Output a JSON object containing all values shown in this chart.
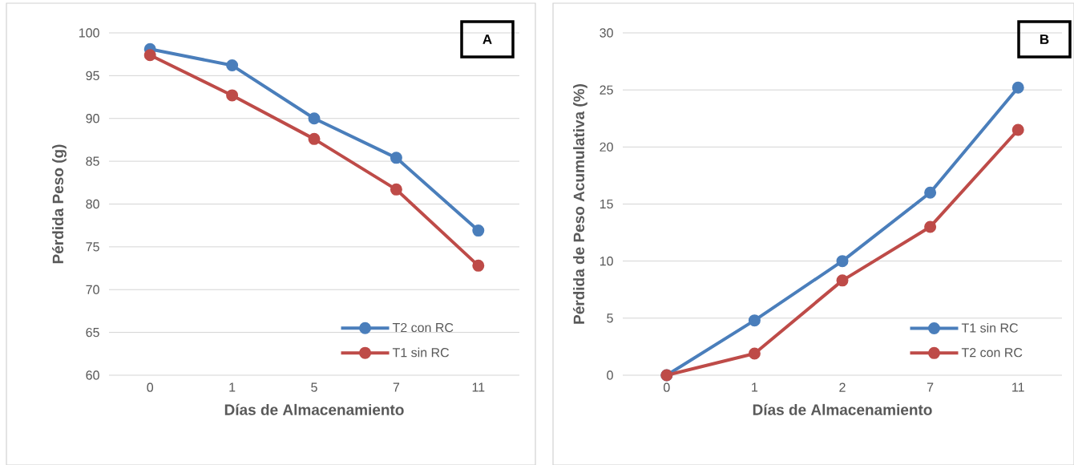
{
  "chart_data": [
    {
      "type": "line",
      "title": "A",
      "xlabel": "Días de Almacenamiento",
      "ylabel": "Pérdida Peso (g)",
      "categories": [
        "0",
        "1",
        "5",
        "7",
        "11"
      ],
      "series": [
        {
          "name": "T2 con RC",
          "color": "#4a7ebb",
          "values": [
            98.1,
            96.2,
            90.0,
            85.4,
            76.9
          ]
        },
        {
          "name": "T1 sin RC",
          "color": "#be4b48",
          "values": [
            97.4,
            92.7,
            87.6,
            81.7,
            72.8
          ]
        }
      ],
      "ylim": [
        60,
        100
      ],
      "yticks": [
        60,
        65,
        70,
        75,
        80,
        85,
        90,
        95,
        100
      ],
      "grid": "y",
      "legend": "bottom right",
      "marker": "circle",
      "line_style": "solid"
    },
    {
      "type": "line",
      "title": "B",
      "xlabel": "Días de Almacenamiento",
      "ylabel": "Pérdida de Peso Acumulativa (%)",
      "categories": [
        "0",
        "1",
        "2",
        "7",
        "11"
      ],
      "series": [
        {
          "name": "T1 sin RC",
          "color": "#4a7ebb",
          "values": [
            0,
            4.8,
            10.0,
            16.0,
            25.2
          ]
        },
        {
          "name": "T2 con RC",
          "color": "#be4b48",
          "values": [
            0,
            1.9,
            8.3,
            13.0,
            21.5
          ]
        }
      ],
      "ylim": [
        0,
        30
      ],
      "yticks": [
        0,
        5,
        10,
        15,
        20,
        25,
        30
      ],
      "grid": "y",
      "legend": "bottom right",
      "marker": "circle",
      "line_style": "solid"
    }
  ]
}
